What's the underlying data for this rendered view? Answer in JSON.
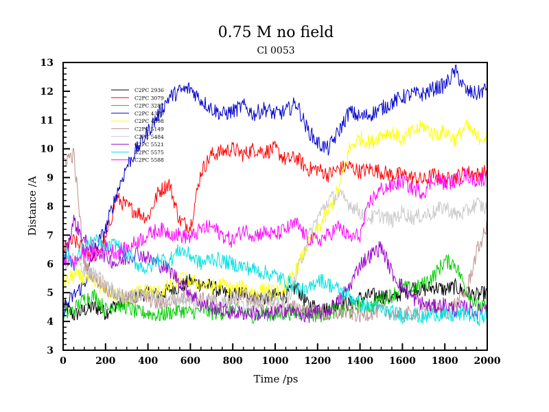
{
  "chart_data": {
    "type": "line",
    "title": "0.75 M no field",
    "subtitle": "Cl 0053",
    "xlabel": "Time /ps",
    "ylabel": "Distance /A",
    "xlim": [
      0,
      2000
    ],
    "ylim": [
      3,
      13
    ],
    "x_ticks": [
      "0",
      "200",
      "400",
      "600",
      "800",
      "1000",
      "1200",
      "1400",
      "1600",
      "1800",
      "2000"
    ],
    "y_ticks": [
      "3",
      "4",
      "5",
      "6",
      "7",
      "8",
      "9",
      "10",
      "11",
      "12",
      "13"
    ],
    "grid": false,
    "legend_position": "top-left",
    "x": [
      0,
      50,
      100,
      150,
      200,
      250,
      300,
      350,
      400,
      450,
      500,
      550,
      600,
      650,
      700,
      750,
      800,
      850,
      900,
      950,
      1000,
      1050,
      1100,
      1150,
      1200,
      1250,
      1300,
      1350,
      1400,
      1450,
      1500,
      1550,
      1600,
      1650,
      1700,
      1750,
      1800,
      1850,
      1900,
      1950,
      2000
    ],
    "series": [
      {
        "name": "C2PC 2936",
        "color": "#000000",
        "values": [
          4.6,
          4.2,
          4.4,
          4.5,
          4.3,
          4.6,
          4.7,
          4.9,
          5.0,
          4.9,
          5.1,
          5.2,
          5.4,
          5.3,
          5.2,
          5.0,
          4.9,
          5.0,
          4.9,
          4.8,
          4.9,
          4.9,
          5.2,
          4.6,
          4.5,
          4.4,
          4.7,
          4.6,
          4.8,
          4.9,
          4.9,
          4.8,
          5.0,
          5.2,
          5.1,
          5.2,
          5.1,
          5.2,
          5.0,
          4.9,
          5.0
        ]
      },
      {
        "name": "C2PC 3079",
        "color": "#ff0000",
        "values": [
          6.5,
          6.8,
          6.5,
          6.3,
          6.8,
          8.3,
          8.0,
          7.8,
          7.6,
          8.5,
          8.8,
          7.5,
          7.3,
          9.2,
          9.8,
          9.9,
          10.0,
          9.8,
          10.0,
          9.9,
          10.0,
          9.6,
          9.7,
          9.3,
          9.3,
          9.1,
          9.3,
          9.4,
          9.2,
          9.3,
          9.2,
          9.1,
          9.1,
          9.0,
          8.9,
          9.1,
          8.9,
          9.0,
          9.2,
          9.1,
          9.2
        ]
      },
      {
        "name": "C2PC 3287",
        "color": "#00cc00",
        "values": [
          4.2,
          4.4,
          4.8,
          4.9,
          4.4,
          4.6,
          4.5,
          4.3,
          4.3,
          4.2,
          4.3,
          4.4,
          4.3,
          4.4,
          4.3,
          4.3,
          4.4,
          4.3,
          4.2,
          4.3,
          4.2,
          4.3,
          4.3,
          4.3,
          4.2,
          4.3,
          4.4,
          4.3,
          4.6,
          4.5,
          4.8,
          4.9,
          5.2,
          5.1,
          5.3,
          5.6,
          6.1,
          6.0,
          5.1,
          4.6,
          4.4
        ]
      },
      {
        "name": "C2PC 4379",
        "color": "#0000cc",
        "values": [
          4.4,
          4.9,
          5.3,
          6.5,
          7.2,
          8.4,
          9.4,
          10.0,
          10.6,
          11.2,
          11.8,
          12.0,
          12.1,
          11.7,
          11.4,
          11.2,
          11.3,
          11.5,
          11.2,
          11.4,
          11.2,
          11.3,
          11.6,
          10.7,
          10.2,
          10.0,
          10.6,
          11.3,
          11.1,
          11.2,
          11.4,
          11.6,
          11.8,
          11.9,
          11.9,
          12.1,
          12.2,
          12.7,
          12.0,
          11.9,
          12.1
        ]
      },
      {
        "name": "C2PC 4398",
        "color": "#ffff00",
        "values": [
          5.3,
          5.6,
          5.5,
          5.3,
          5.1,
          4.9,
          4.8,
          5.0,
          5.1,
          5.0,
          5.2,
          5.5,
          5.4,
          5.3,
          5.2,
          5.3,
          5.1,
          5.2,
          5.0,
          5.1,
          5.0,
          5.2,
          5.8,
          6.6,
          7.2,
          7.8,
          8.6,
          10.0,
          10.4,
          10.2,
          10.5,
          10.6,
          10.3,
          10.6,
          10.8,
          10.5,
          10.6,
          10.3,
          10.8,
          10.4,
          10.4
        ]
      },
      {
        "name": "C2PC 5149",
        "color": "#bc8f8f",
        "values": [
          9.6,
          9.8,
          6.0,
          5.5,
          5.2,
          4.9,
          4.8,
          4.9,
          4.8,
          4.6,
          4.7,
          4.8,
          4.9,
          4.8,
          4.7,
          4.6,
          4.8,
          4.9,
          4.7,
          4.6,
          4.5,
          4.4,
          4.5,
          4.4,
          4.3,
          4.2,
          4.3,
          4.3,
          4.2,
          4.3,
          4.4,
          4.3,
          4.2,
          4.3,
          4.4,
          4.5,
          4.3,
          4.6,
          5.0,
          6.4,
          7.3
        ]
      },
      {
        "name": "C2PC 5484",
        "color": "#c8c8c8",
        "values": [
          5.8,
          6.2,
          5.8,
          5.6,
          5.3,
          5.0,
          4.8,
          4.9,
          5.0,
          4.8,
          4.7,
          4.8,
          4.7,
          4.6,
          4.8,
          4.7,
          4.8,
          4.6,
          4.7,
          4.8,
          4.7,
          4.6,
          5.6,
          6.8,
          7.6,
          8.2,
          8.4,
          8.1,
          7.8,
          7.6,
          7.7,
          7.5,
          7.8,
          7.6,
          7.7,
          7.8,
          8.0,
          7.7,
          7.8,
          8.1,
          7.9
        ]
      },
      {
        "name": "C2PC 5521",
        "color": "#9900cc",
        "values": [
          6.0,
          7.5,
          6.8,
          6.5,
          6.3,
          6.0,
          6.2,
          6.4,
          6.2,
          6.0,
          5.8,
          5.4,
          5.0,
          4.6,
          4.5,
          4.4,
          4.3,
          4.3,
          4.3,
          4.2,
          4.3,
          4.4,
          4.3,
          4.2,
          4.3,
          4.4,
          4.7,
          5.2,
          6.0,
          6.3,
          6.6,
          5.7,
          5.2,
          4.8,
          4.6,
          4.5,
          4.6,
          4.4,
          4.5,
          4.3,
          4.6
        ]
      },
      {
        "name": "C2PC 5575",
        "color": "#00e0e0",
        "values": [
          6.5,
          6.0,
          6.6,
          6.8,
          6.5,
          6.7,
          6.3,
          6.0,
          5.8,
          6.2,
          6.1,
          6.5,
          6.3,
          6.0,
          6.2,
          6.1,
          6.0,
          5.9,
          5.8,
          5.7,
          5.6,
          5.4,
          5.2,
          5.0,
          5.5,
          5.3,
          5.1,
          4.9,
          4.6,
          4.5,
          4.4,
          4.3,
          4.2,
          4.3,
          4.1,
          4.3,
          4.2,
          4.2,
          4.3,
          4.1,
          4.2
        ]
      },
      {
        "name": "C2PC 5588",
        "color": "#ff00ff",
        "values": [
          6.2,
          6.0,
          6.4,
          6.3,
          6.6,
          6.4,
          6.5,
          6.8,
          7.0,
          7.2,
          7.1,
          7.0,
          6.9,
          7.2,
          7.3,
          7.0,
          6.8,
          7.2,
          7.0,
          7.1,
          7.0,
          7.2,
          7.4,
          6.9,
          6.8,
          7.0,
          7.3,
          6.9,
          7.0,
          8.2,
          8.6,
          8.7,
          8.9,
          8.6,
          8.5,
          9.0,
          8.8,
          8.9,
          9.1,
          8.9,
          9.0
        ]
      }
    ]
  }
}
